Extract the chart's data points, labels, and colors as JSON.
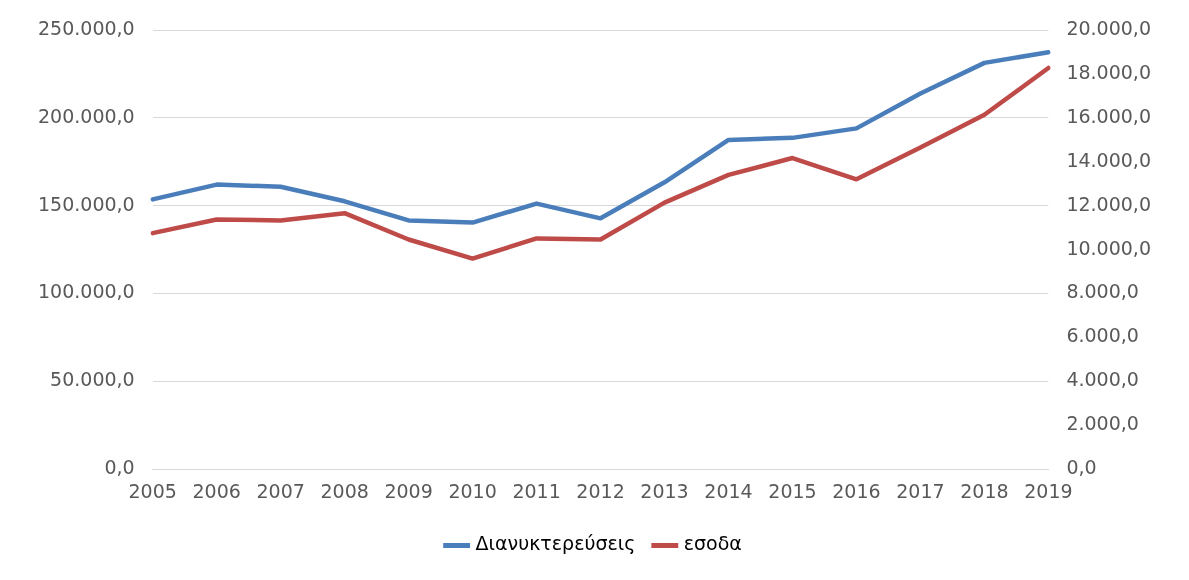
{
  "chart_data": {
    "type": "line",
    "categories": [
      "2005",
      "2006",
      "2007",
      "2008",
      "2009",
      "2010",
      "2011",
      "2012",
      "2013",
      "2014",
      "2015",
      "2016",
      "2017",
      "2018",
      "2019"
    ],
    "series": [
      {
        "name": "Διανυκτερεύσεις",
        "color": "#4a7ebb",
        "values": [
          153600,
          162000,
          160800,
          152500,
          141600,
          140400,
          151200,
          142800,
          163300,
          187400,
          188600,
          194000,
          213900,
          231300,
          237300
        ]
      },
      {
        "name": "εσοδα",
        "color": "#be4b48",
        "axis": "y2",
        "values": [
          10750,
          11370,
          11330,
          11660,
          10460,
          9590,
          10510,
          10460,
          12140,
          13400,
          14170,
          13200,
          14650,
          16140,
          18270
        ]
      }
    ],
    "ylim": [
      0,
      250000
    ],
    "yticks": [
      {
        "value": 0,
        "label": "0,0"
      },
      {
        "value": 50000,
        "label": "50.000,0"
      },
      {
        "value": 100000,
        "label": "100.000,0"
      },
      {
        "value": 150000,
        "label": "150.000,0"
      },
      {
        "value": 200000,
        "label": "200.000,0"
      },
      {
        "value": 250000,
        "label": "250.000,0"
      }
    ],
    "y2lim": [
      0,
      20000
    ],
    "y2ticks": [
      {
        "value": 0,
        "label": "0,0"
      },
      {
        "value": 2000,
        "label": "2.000,0"
      },
      {
        "value": 4000,
        "label": "4.000,0"
      },
      {
        "value": 6000,
        "label": "6.000,0"
      },
      {
        "value": 8000,
        "label": "8.000,0"
      },
      {
        "value": 10000,
        "label": "10.000,0"
      },
      {
        "value": 12000,
        "label": "12.000,0"
      },
      {
        "value": 14000,
        "label": "14.000,0"
      },
      {
        "value": 16000,
        "label": "16.000,0"
      },
      {
        "value": 18000,
        "label": "18.000,0"
      },
      {
        "value": 20000,
        "label": "20.000,0"
      }
    ],
    "grid": "y",
    "legend": "bottom",
    "marker": "none",
    "line_style": "solid"
  }
}
